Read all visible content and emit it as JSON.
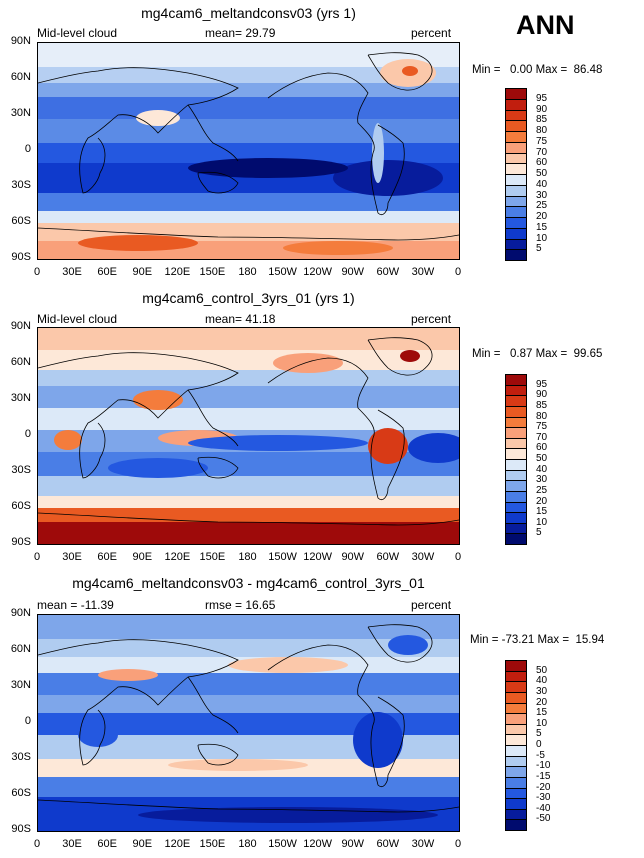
{
  "season": "ANN",
  "panels": [
    {
      "title": "mg4cam6_meltandconsv03 (yrs 1)",
      "left_label": "Mid-level cloud",
      "center_label": "mean=  29.79",
      "right_label": "percent",
      "minmax": "Min =   0.00 Max =  86.48",
      "legend_labels": [
        "95",
        "90",
        "85",
        "80",
        "75",
        "70",
        "60",
        "50",
        "40",
        "30",
        "25",
        "20",
        "15",
        "10",
        "5"
      ],
      "legend_colors": [
        "#9e0a0a",
        "#c11e0e",
        "#d83a16",
        "#e95a22",
        "#f47c3c",
        "#f9a07a",
        "#fbc8aa",
        "#fde8d8",
        "#dce9f8",
        "#b0ccf0",
        "#7ea6ea",
        "#4a7ee6",
        "#2458e0",
        "#0f3acc",
        "#071c9c",
        "#000b6e"
      ]
    },
    {
      "title": "mg4cam6_control_3yrs_01 (yrs 1)",
      "left_label": "Mid-level cloud",
      "center_label": "mean=  41.18",
      "right_label": "percent",
      "minmax": "Min =   0.87 Max =  99.65",
      "legend_labels": [
        "95",
        "90",
        "85",
        "80",
        "75",
        "70",
        "60",
        "50",
        "40",
        "30",
        "25",
        "20",
        "15",
        "10",
        "5"
      ],
      "legend_colors": [
        "#9e0a0a",
        "#c11e0e",
        "#d83a16",
        "#e95a22",
        "#f47c3c",
        "#f9a07a",
        "#fbc8aa",
        "#fde8d8",
        "#dce9f8",
        "#b0ccf0",
        "#7ea6ea",
        "#4a7ee6",
        "#2458e0",
        "#0f3acc",
        "#071c9c",
        "#000b6e"
      ]
    },
    {
      "title": "mg4cam6_meltandconsv03 - mg4cam6_control_3yrs_01",
      "left_label": "mean = -11.39",
      "center_label": "rmse =  16.65",
      "right_label": "percent",
      "minmax": "Min = -73.21 Max =  15.94",
      "legend_labels": [
        "50",
        "40",
        "30",
        "20",
        "15",
        "10",
        "5",
        "0",
        "-5",
        "-10",
        "-15",
        "-20",
        "-30",
        "-40",
        "-50"
      ],
      "legend_colors": [
        "#9e0a0a",
        "#c11e0e",
        "#d83a16",
        "#e95a22",
        "#f47c3c",
        "#f9a07a",
        "#fbc8aa",
        "#fde8d8",
        "#dce9f8",
        "#b0ccf0",
        "#7ea6ea",
        "#4a7ee6",
        "#2458e0",
        "#0f3acc",
        "#071c9c",
        "#000b6e"
      ]
    }
  ],
  "lat_labels": [
    "90N",
    "60N",
    "30N",
    "0",
    "30S",
    "60S",
    "90S"
  ],
  "lon_labels": [
    "0",
    "30E",
    "60E",
    "90E",
    "120E",
    "150E",
    "180",
    "150W",
    "120W",
    "90W",
    "60W",
    "30W",
    "0"
  ]
}
